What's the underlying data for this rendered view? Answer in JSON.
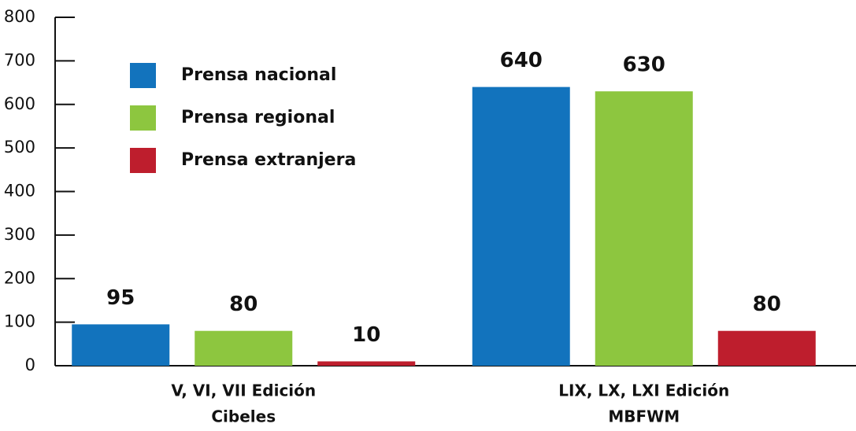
{
  "chart_data": {
    "type": "bar",
    "categories": [
      [
        "V, VI, VII Edición",
        "Cibeles"
      ],
      [
        "LIX, LX, LXI Edición",
        "MBFWM"
      ]
    ],
    "series": [
      {
        "name": "Prensa nacional",
        "color": "#1273bd",
        "values": [
          95,
          640
        ]
      },
      {
        "name": "Prensa regional",
        "color": "#8dc63f",
        "values": [
          80,
          630
        ]
      },
      {
        "name": "Prensa extranjera",
        "color": "#be1e2d",
        "values": [
          10,
          80
        ]
      }
    ],
    "ylim": [
      0,
      800
    ],
    "yticks": [
      0,
      100,
      200,
      300,
      400,
      500,
      600,
      700,
      800
    ],
    "legend": "upper left"
  }
}
